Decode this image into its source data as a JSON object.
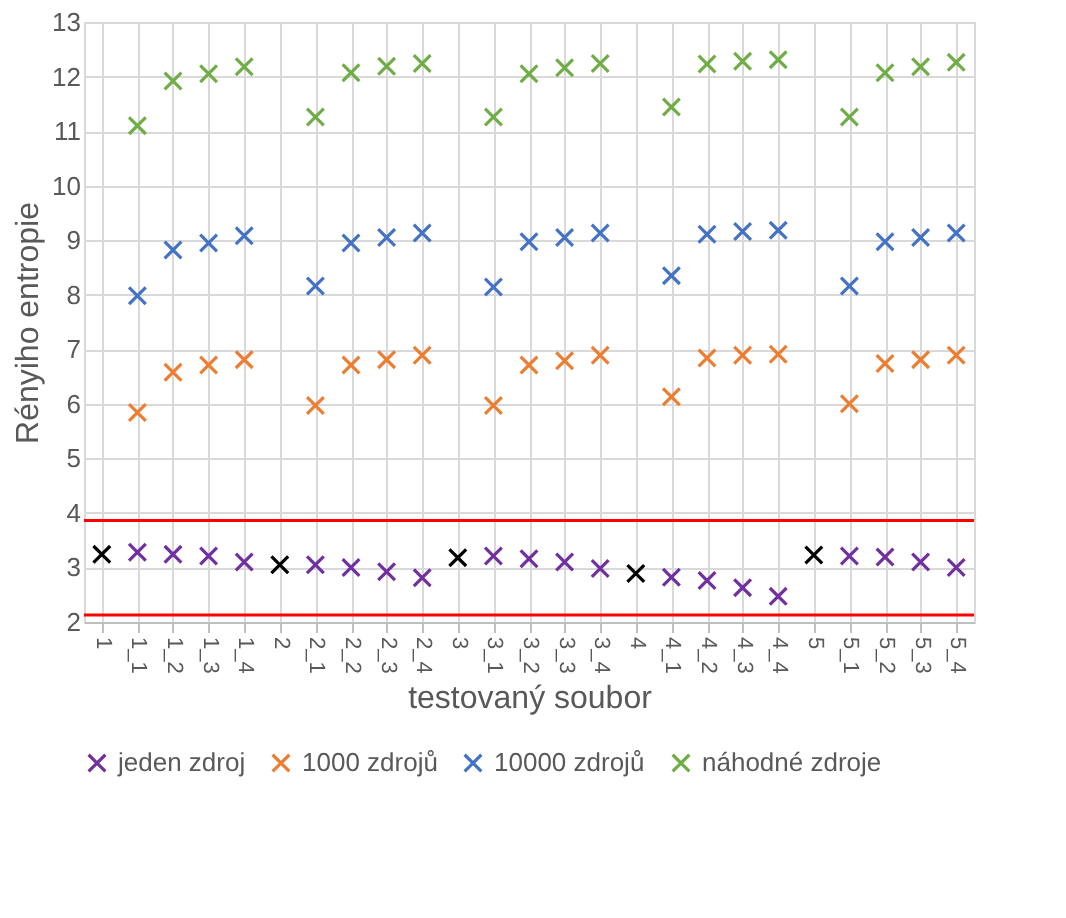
{
  "chart_data": {
    "type": "scatter",
    "xlabel": "testovaný soubor",
    "ylabel": "Rényiho entropie",
    "categories": [
      "1",
      "1_1",
      "1_2",
      "1_3",
      "1_4",
      "2",
      "2_1",
      "2_2",
      "2_3",
      "2_4",
      "3",
      "3_1",
      "3_2",
      "3_3",
      "3_4",
      "4",
      "4_1",
      "4_2",
      "4_3",
      "4_4",
      "5",
      "5_1",
      "5_2",
      "5_3",
      "5_4"
    ],
    "series": [
      {
        "name": "jeden zdroj",
        "color": "#7030a0",
        "values": [
          null,
          3.28,
          3.24,
          3.21,
          3.1,
          null,
          3.05,
          3.0,
          2.92,
          2.81,
          null,
          3.21,
          3.16,
          3.1,
          2.98,
          null,
          2.82,
          2.76,
          2.63,
          2.47,
          null,
          3.21,
          3.19,
          3.1,
          3.0
        ]
      },
      {
        "name": "1000 zdrojů",
        "color": "#ed7d31",
        "values": [
          null,
          5.84,
          6.58,
          6.71,
          6.81,
          null,
          5.97,
          6.71,
          6.81,
          6.89,
          null,
          5.97,
          6.71,
          6.79,
          6.89,
          null,
          6.13,
          6.84,
          6.89,
          6.91,
          null,
          6.0,
          6.74,
          6.81,
          6.89
        ]
      },
      {
        "name": "10000 zdrojů",
        "color": "#4472c4",
        "values": [
          null,
          7.98,
          8.82,
          8.95,
          9.08,
          null,
          8.16,
          8.95,
          9.05,
          9.13,
          null,
          8.14,
          8.97,
          9.05,
          9.13,
          null,
          8.35,
          9.11,
          9.16,
          9.18,
          null,
          8.16,
          8.97,
          9.05,
          9.13
        ]
      },
      {
        "name": "náhodné zdroje",
        "color": "#70ad47",
        "values": [
          null,
          11.1,
          11.92,
          12.05,
          12.18,
          null,
          11.26,
          12.07,
          12.19,
          12.24,
          null,
          11.26,
          12.05,
          12.16,
          12.24,
          null,
          11.44,
          12.23,
          12.28,
          12.31,
          null,
          11.26,
          12.07,
          12.18,
          12.26
        ]
      },
      {
        "color": "#000000",
        "values": [
          3.24,
          null,
          null,
          null,
          null,
          3.05,
          null,
          null,
          null,
          null,
          3.18,
          null,
          null,
          null,
          null,
          2.89,
          null,
          null,
          null,
          null,
          3.23,
          null,
          null,
          null,
          null
        ]
      }
    ],
    "ylim": [
      2,
      13
    ],
    "yticks": [
      2,
      3,
      4,
      5,
      6,
      7,
      8,
      9,
      10,
      11,
      12,
      13
    ],
    "ref_lines": [
      {
        "axis": "y",
        "value": 3.86,
        "color": "#ff0000"
      },
      {
        "axis": "y",
        "value": 2.13,
        "color": "#ff0000"
      }
    ],
    "grid": true,
    "legend": "bottom",
    "marker": "cross"
  }
}
